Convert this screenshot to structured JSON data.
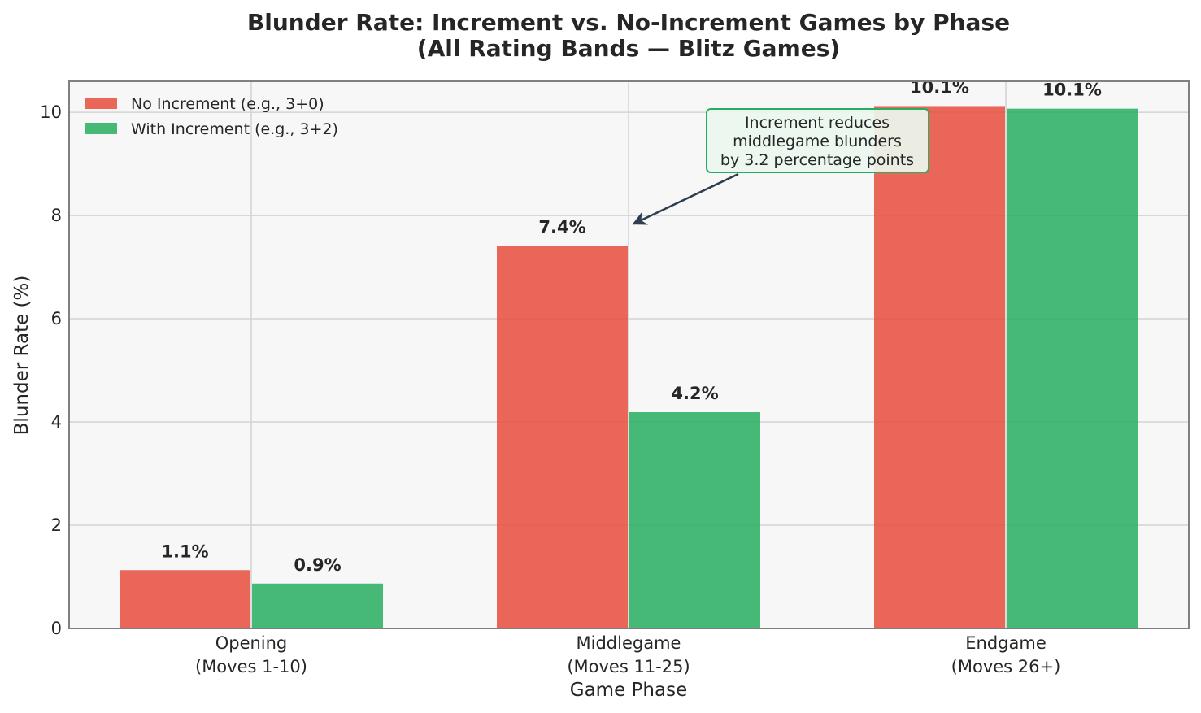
{
  "chart_data": {
    "type": "bar",
    "title": [
      "Blunder Rate: Increment vs. No-Increment Games by Phase",
      "(All Rating Bands — Blitz Games)"
    ],
    "xlabel": "Game Phase",
    "ylabel": "Blunder Rate (%)",
    "categories": [
      [
        "Opening",
        "(Moves 1-10)"
      ],
      [
        "Middlegame",
        "(Moves 11-25)"
      ],
      [
        "Endgame",
        "(Moves 26+)"
      ]
    ],
    "series": [
      {
        "name": "No Increment (e.g., 3+0)",
        "color": "#e74c3c",
        "values": [
          1.13,
          7.41,
          10.12
        ],
        "labels": [
          "1.1%",
          "7.4%",
          "10.1%"
        ]
      },
      {
        "name": "With Increment (e.g., 3+2)",
        "color": "#27ae60",
        "values": [
          0.87,
          4.19,
          10.07
        ],
        "labels": [
          "0.9%",
          "4.2%",
          "10.1%"
        ]
      }
    ],
    "ylim": [
      0,
      10.6
    ],
    "yticks": [
      0,
      2,
      4,
      6,
      8,
      10
    ],
    "grid": true,
    "legend_position": "upper-left",
    "annotation": {
      "text": [
        "Increment reduces",
        "middlegame blunders",
        "by 3.2 percentage points"
      ],
      "arrow_target": {
        "category_index": 1,
        "y": 7.9
      },
      "box_color": "#27ae60"
    }
  }
}
